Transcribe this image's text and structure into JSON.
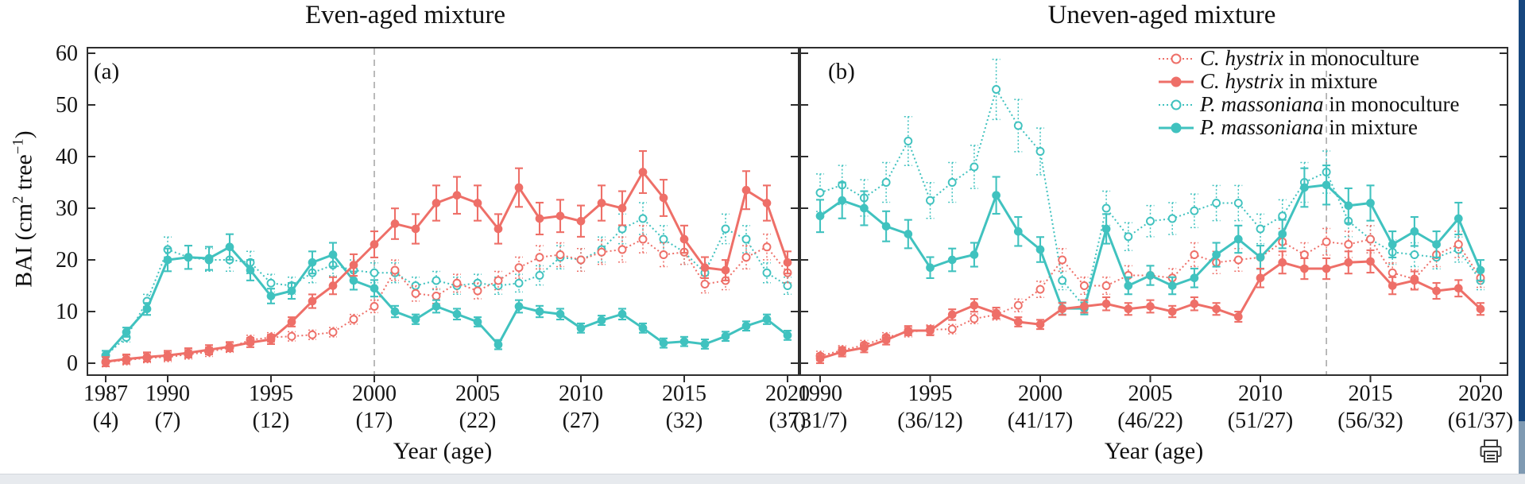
{
  "y_axis": {
    "p1": "BAI (cm",
    "p2": "2",
    "p3": " tree",
    "p4": "−1",
    "p5": ")"
  },
  "legend": {
    "items": [
      {
        "species": "C. hystrix",
        "rest": " in monoculture",
        "color": "#ee6f68",
        "variant": "dotted-open"
      },
      {
        "species": "C. hystrix",
        "rest": " in mixture",
        "color": "#ee6f68",
        "variant": "solid-filled"
      },
      {
        "species": "P. massoniana",
        "rest": " in monoculture",
        "color": "#40c2bf",
        "variant": "dotted-open"
      },
      {
        "species": "P. massoniana",
        "rest": " in mixture",
        "color": "#40c2bf",
        "variant": "solid-filled"
      }
    ],
    "position": "top-right of panel (b)"
  },
  "chrome": {
    "scrollbar_track_color": "#7f9ab2",
    "scrollbar_thumb_color": "#17477f",
    "bottom_strip_color": "#e7eaee",
    "print_icon": "printer-icon"
  },
  "chart_data": [
    {
      "type": "line",
      "title": "Even-aged mixture",
      "panel_label": "(a)",
      "xlabel": "Year (age)",
      "ylabel": "BAI (cm2 tree-1)",
      "ylim": [
        0,
        60
      ],
      "y_ticks": [
        0,
        10,
        20,
        30,
        40,
        50,
        60
      ],
      "grid": false,
      "dashed_guide_year": 2000,
      "error_bar_fraction": 0.11,
      "x": [
        1987,
        1988,
        1989,
        1990,
        1991,
        1992,
        1993,
        1994,
        1995,
        1996,
        1997,
        1998,
        1999,
        2000,
        2001,
        2002,
        2003,
        2004,
        2005,
        2006,
        2007,
        2008,
        2009,
        2010,
        2011,
        2012,
        2013,
        2014,
        2015,
        2016,
        2017,
        2018,
        2019,
        2020
      ],
      "x_ticks": [
        {
          "year": 1987,
          "label": "1987",
          "age": "(4)"
        },
        {
          "year": 1990,
          "label": "1990",
          "age": "(7)"
        },
        {
          "year": 1995,
          "label": "1995",
          "age": "(12)"
        },
        {
          "year": 2000,
          "label": "2000",
          "age": "(17)"
        },
        {
          "year": 2005,
          "label": "2005",
          "age": "(22)"
        },
        {
          "year": 2010,
          "label": "2010",
          "age": "(27)"
        },
        {
          "year": 2015,
          "label": "2015",
          "age": "(32)"
        },
        {
          "year": 2020,
          "label": "2020",
          "age": "(37)"
        }
      ],
      "series": [
        {
          "name": "C. hystrix in monoculture",
          "style": "dotted-open",
          "color": "#ee6f68",
          "values": [
            0.2,
            0.6,
            1.0,
            1.2,
            1.7,
            2.2,
            3.0,
            4.5,
            5.0,
            5.2,
            5.5,
            6.0,
            8.5,
            11.0,
            18.0,
            13.5,
            13.0,
            15.5,
            14.0,
            16.0,
            18.5,
            20.5,
            21.0,
            20.0,
            21.5,
            22.0,
            24.0,
            21.0,
            21.5,
            15.3,
            16.0,
            20.5,
            22.5,
            17.5
          ]
        },
        {
          "name": "C. hystrix in mixture",
          "style": "solid-filled",
          "color": "#ee6f68",
          "values": [
            0.3,
            0.8,
            1.2,
            1.5,
            2.0,
            2.6,
            3.2,
            4.0,
            4.6,
            8.0,
            12.0,
            15.0,
            19.0,
            23.0,
            27.0,
            26.0,
            31.0,
            32.5,
            31.0,
            26.0,
            34.0,
            28.0,
            28.5,
            27.5,
            31.0,
            30.0,
            37.0,
            32.0,
            24.0,
            18.5,
            18.0,
            33.5,
            31.0,
            19.5
          ]
        },
        {
          "name": "P. massoniana in monoculture",
          "style": "dotted-open",
          "color": "#40c2bf",
          "values": [
            1.5,
            5.0,
            12.0,
            22.0,
            20.5,
            20.0,
            20.0,
            19.5,
            15.5,
            15.0,
            17.5,
            19.0,
            18.0,
            17.5,
            17.5,
            15.0,
            16.0,
            15.0,
            15.5,
            15.0,
            15.5,
            17.0,
            20.5,
            20.0,
            22.0,
            26.0,
            28.0,
            24.0,
            21.5,
            17.5,
            26.0,
            24.0,
            17.5,
            15.0
          ]
        },
        {
          "name": "P. massoniana in mixture",
          "style": "solid-filled",
          "color": "#40c2bf",
          "values": [
            1.5,
            6.0,
            10.5,
            20.0,
            20.5,
            20.3,
            22.5,
            18.0,
            13.0,
            14.0,
            19.5,
            21.0,
            16.0,
            14.5,
            10.0,
            8.5,
            11.0,
            9.5,
            8.0,
            3.6,
            11.0,
            10.0,
            9.5,
            6.8,
            8.3,
            9.5,
            6.8,
            3.9,
            4.2,
            3.7,
            5.2,
            7.2,
            8.5,
            5.4
          ]
        }
      ]
    },
    {
      "type": "line",
      "title": "Uneven-aged mixture",
      "panel_label": "(b)",
      "xlabel": "Year (age)",
      "ylabel": "BAI (cm2 tree-1)",
      "ylim": [
        0,
        60
      ],
      "y_ticks": [
        0,
        10,
        20,
        30,
        40,
        50,
        60
      ],
      "grid": false,
      "dashed_guide_year": 2013,
      "error_bar_fraction": 0.11,
      "x": [
        1990,
        1991,
        1992,
        1993,
        1994,
        1995,
        1996,
        1997,
        1998,
        1999,
        2000,
        2001,
        2002,
        2003,
        2004,
        2005,
        2006,
        2007,
        2008,
        2009,
        2010,
        2011,
        2012,
        2013,
        2014,
        2015,
        2016,
        2017,
        2018,
        2019,
        2020
      ],
      "x_ticks": [
        {
          "year": 1990,
          "label": "1990",
          "age": "(31/7)"
        },
        {
          "year": 1995,
          "label": "1995",
          "age": "(36/12)"
        },
        {
          "year": 2000,
          "label": "2000",
          "age": "(41/17)"
        },
        {
          "year": 2005,
          "label": "2005",
          "age": "(46/22)"
        },
        {
          "year": 2010,
          "label": "2010",
          "age": "(51/27)"
        },
        {
          "year": 2015,
          "label": "2015",
          "age": "(56/32)"
        },
        {
          "year": 2020,
          "label": "2020",
          "age": "(61/37)"
        }
      ],
      "series": [
        {
          "name": "C. hystrix in monoculture",
          "style": "dotted-open",
          "color": "#ee6f68",
          "values": [
            1.4,
            2.5,
            3.5,
            5.0,
            6.0,
            6.5,
            6.6,
            8.6,
            9.4,
            11.2,
            14.3,
            20.0,
            15.0,
            15.0,
            17.0,
            17.0,
            16.5,
            21.0,
            19.5,
            20.0,
            20.5,
            23.5,
            21.0,
            23.5,
            23.0,
            24.0,
            17.5,
            16.3,
            21.0,
            23.0,
            16.5
          ]
        },
        {
          "name": "C. hystrix in mixture",
          "style": "solid-filled",
          "color": "#ee6f68",
          "values": [
            0.9,
            2.2,
            3.0,
            4.5,
            6.3,
            6.3,
            9.4,
            11.2,
            9.7,
            8.0,
            7.5,
            10.5,
            11.0,
            11.5,
            10.5,
            11.0,
            10.0,
            11.5,
            10.5,
            9.0,
            16.5,
            19.5,
            18.3,
            18.3,
            19.5,
            19.7,
            15.0,
            16.0,
            14.0,
            14.5,
            10.5
          ]
        },
        {
          "name": "P. massoniana in monoculture",
          "style": "dotted-open",
          "color": "#40c2bf",
          "values": [
            33.0,
            34.5,
            32.0,
            35.0,
            43.0,
            31.5,
            35.0,
            38.0,
            53.0,
            46.0,
            41.0,
            16.0,
            11.0,
            30.0,
            24.5,
            27.5,
            28.0,
            29.5,
            31.0,
            31.0,
            26.0,
            28.5,
            35.0,
            37.0,
            27.5,
            24.0,
            21.5,
            21.0,
            20.5,
            22.0,
            16.0
          ]
        },
        {
          "name": "P. massoniana in mixture",
          "style": "solid-filled",
          "color": "#40c2bf",
          "values": [
            28.5,
            31.5,
            30.0,
            26.5,
            25.0,
            18.5,
            20.0,
            21.0,
            32.5,
            25.5,
            22.0,
            10.6,
            10.6,
            26.0,
            15.0,
            17.0,
            15.0,
            16.5,
            21.0,
            24.0,
            20.5,
            25.0,
            34.0,
            34.5,
            30.5,
            31.0,
            23.0,
            25.5,
            23.0,
            28.0,
            18.0
          ]
        }
      ]
    }
  ]
}
